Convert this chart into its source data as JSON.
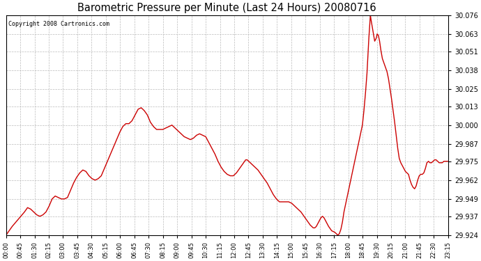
{
  "title": "Barometric Pressure per Minute (Last 24 Hours) 20080716",
  "copyright": "Copyright 2008 Cartronics.com",
  "line_color": "#cc0000",
  "background_color": "#ffffff",
  "grid_color": "#bbbbbb",
  "yticks": [
    29.924,
    29.937,
    29.949,
    29.962,
    29.975,
    29.987,
    30.0,
    30.013,
    30.025,
    30.038,
    30.051,
    30.063,
    30.076
  ],
  "xtick_labels": [
    "00:00",
    "00:45",
    "01:30",
    "02:15",
    "03:00",
    "03:45",
    "04:30",
    "05:15",
    "06:00",
    "06:45",
    "07:30",
    "08:15",
    "09:00",
    "09:45",
    "10:30",
    "11:15",
    "12:00",
    "12:45",
    "13:30",
    "14:15",
    "15:00",
    "15:45",
    "16:30",
    "17:15",
    "18:00",
    "18:45",
    "19:30",
    "20:15",
    "21:00",
    "21:45",
    "22:30",
    "23:15"
  ],
  "ylim": [
    29.924,
    30.076
  ],
  "xlim": [
    0,
    1439
  ],
  "pressure_points": [
    [
      0,
      29.924
    ],
    [
      20,
      29.93
    ],
    [
      40,
      29.935
    ],
    [
      60,
      29.94
    ],
    [
      70,
      29.943
    ],
    [
      80,
      29.942
    ],
    [
      90,
      29.94
    ],
    [
      100,
      29.938
    ],
    [
      110,
      29.937
    ],
    [
      120,
      29.938
    ],
    [
      130,
      29.94
    ],
    [
      140,
      29.944
    ],
    [
      150,
      29.949
    ],
    [
      160,
      29.951
    ],
    [
      170,
      29.95
    ],
    [
      180,
      29.949
    ],
    [
      190,
      29.949
    ],
    [
      200,
      29.95
    ],
    [
      210,
      29.955
    ],
    [
      220,
      29.96
    ],
    [
      230,
      29.964
    ],
    [
      240,
      29.967
    ],
    [
      250,
      29.969
    ],
    [
      260,
      29.968
    ],
    [
      270,
      29.965
    ],
    [
      280,
      29.963
    ],
    [
      290,
      29.962
    ],
    [
      300,
      29.963
    ],
    [
      310,
      29.965
    ],
    [
      320,
      29.97
    ],
    [
      330,
      29.975
    ],
    [
      340,
      29.98
    ],
    [
      350,
      29.985
    ],
    [
      360,
      29.99
    ],
    [
      370,
      29.995
    ],
    [
      380,
      29.999
    ],
    [
      390,
      30.001
    ],
    [
      400,
      30.001
    ],
    [
      410,
      30.003
    ],
    [
      420,
      30.007
    ],
    [
      430,
      30.011
    ],
    [
      440,
      30.012
    ],
    [
      450,
      30.01
    ],
    [
      460,
      30.007
    ],
    [
      470,
      30.002
    ],
    [
      480,
      29.999
    ],
    [
      490,
      29.997
    ],
    [
      495,
      29.997
    ],
    [
      500,
      29.997
    ],
    [
      510,
      29.997
    ],
    [
      520,
      29.998
    ],
    [
      530,
      29.999
    ],
    [
      540,
      30.0
    ],
    [
      550,
      29.998
    ],
    [
      560,
      29.996
    ],
    [
      570,
      29.994
    ],
    [
      580,
      29.992
    ],
    [
      590,
      29.991
    ],
    [
      600,
      29.99
    ],
    [
      610,
      29.991
    ],
    [
      620,
      29.993
    ],
    [
      630,
      29.994
    ],
    [
      640,
      29.993
    ],
    [
      650,
      29.992
    ],
    [
      660,
      29.988
    ],
    [
      670,
      29.984
    ],
    [
      680,
      29.98
    ],
    [
      690,
      29.975
    ],
    [
      700,
      29.971
    ],
    [
      710,
      29.968
    ],
    [
      720,
      29.966
    ],
    [
      730,
      29.965
    ],
    [
      740,
      29.965
    ],
    [
      750,
      29.967
    ],
    [
      760,
      29.97
    ],
    [
      770,
      29.973
    ],
    [
      780,
      29.976
    ],
    [
      785,
      29.976
    ],
    [
      790,
      29.975
    ],
    [
      800,
      29.973
    ],
    [
      810,
      29.971
    ],
    [
      820,
      29.969
    ],
    [
      830,
      29.966
    ],
    [
      840,
      29.963
    ],
    [
      850,
      29.96
    ],
    [
      860,
      29.956
    ],
    [
      870,
      29.952
    ],
    [
      880,
      29.949
    ],
    [
      890,
      29.947
    ],
    [
      895,
      29.947
    ],
    [
      900,
      29.947
    ],
    [
      910,
      29.947
    ],
    [
      920,
      29.947
    ],
    [
      930,
      29.946
    ],
    [
      940,
      29.944
    ],
    [
      950,
      29.942
    ],
    [
      960,
      29.94
    ],
    [
      970,
      29.937
    ],
    [
      980,
      29.934
    ],
    [
      990,
      29.931
    ],
    [
      1000,
      29.929
    ],
    [
      1005,
      29.929
    ],
    [
      1010,
      29.93
    ],
    [
      1015,
      29.932
    ],
    [
      1020,
      29.934
    ],
    [
      1025,
      29.936
    ],
    [
      1030,
      29.937
    ],
    [
      1035,
      29.936
    ],
    [
      1040,
      29.934
    ],
    [
      1045,
      29.932
    ],
    [
      1050,
      29.93
    ],
    [
      1060,
      29.927
    ],
    [
      1070,
      29.926
    ],
    [
      1080,
      29.924
    ],
    [
      1085,
      29.925
    ],
    [
      1090,
      29.928
    ],
    [
      1095,
      29.933
    ],
    [
      1100,
      29.94
    ],
    [
      1110,
      29.95
    ],
    [
      1120,
      29.96
    ],
    [
      1130,
      29.97
    ],
    [
      1140,
      29.98
    ],
    [
      1150,
      29.99
    ],
    [
      1160,
      30.0
    ],
    [
      1165,
      30.01
    ],
    [
      1170,
      30.022
    ],
    [
      1175,
      30.036
    ],
    [
      1178,
      30.048
    ],
    [
      1181,
      30.06
    ],
    [
      1184,
      30.07
    ],
    [
      1186,
      30.076
    ],
    [
      1188,
      30.073
    ],
    [
      1192,
      30.068
    ],
    [
      1196,
      30.063
    ],
    [
      1200,
      30.058
    ],
    [
      1205,
      30.06
    ],
    [
      1208,
      30.063
    ],
    [
      1212,
      30.062
    ],
    [
      1216,
      30.058
    ],
    [
      1220,
      30.052
    ],
    [
      1225,
      30.046
    ],
    [
      1230,
      30.043
    ],
    [
      1235,
      30.04
    ],
    [
      1240,
      30.037
    ],
    [
      1245,
      30.032
    ],
    [
      1250,
      30.025
    ],
    [
      1255,
      30.018
    ],
    [
      1260,
      30.01
    ],
    [
      1265,
      30.002
    ],
    [
      1270,
      29.993
    ],
    [
      1275,
      29.984
    ],
    [
      1280,
      29.977
    ],
    [
      1285,
      29.974
    ],
    [
      1290,
      29.972
    ],
    [
      1295,
      29.97
    ],
    [
      1300,
      29.968
    ],
    [
      1305,
      29.967
    ],
    [
      1310,
      29.966
    ],
    [
      1315,
      29.962
    ],
    [
      1320,
      29.959
    ],
    [
      1325,
      29.957
    ],
    [
      1330,
      29.956
    ],
    [
      1335,
      29.958
    ],
    [
      1340,
      29.962
    ],
    [
      1345,
      29.965
    ],
    [
      1350,
      29.966
    ],
    [
      1355,
      29.966
    ],
    [
      1360,
      29.967
    ],
    [
      1365,
      29.97
    ],
    [
      1370,
      29.974
    ],
    [
      1375,
      29.975
    ],
    [
      1380,
      29.974
    ],
    [
      1385,
      29.974
    ],
    [
      1390,
      29.975
    ],
    [
      1395,
      29.976
    ],
    [
      1400,
      29.976
    ],
    [
      1405,
      29.975
    ],
    [
      1410,
      29.974
    ],
    [
      1415,
      29.974
    ],
    [
      1420,
      29.974
    ],
    [
      1425,
      29.975
    ],
    [
      1430,
      29.975
    ],
    [
      1435,
      29.975
    ],
    [
      1439,
      29.975
    ]
  ]
}
